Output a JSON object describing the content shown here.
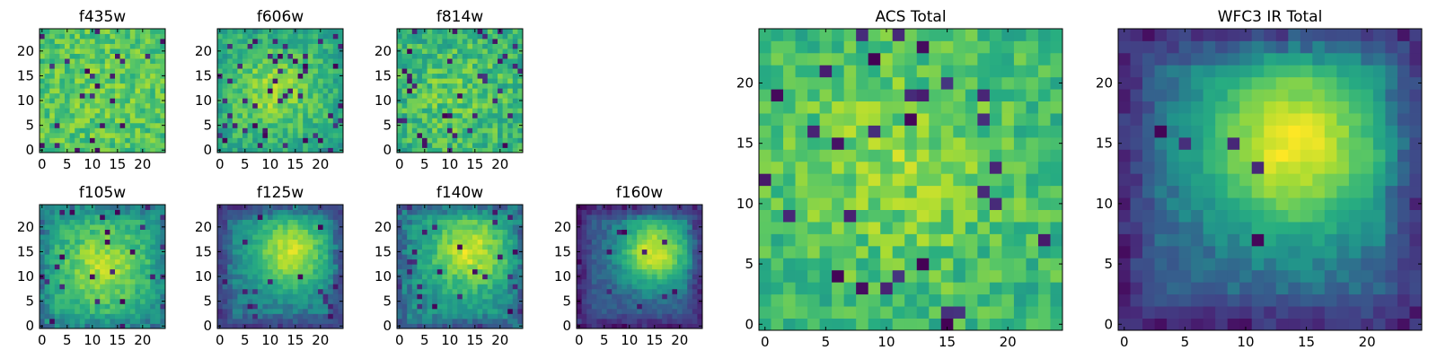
{
  "figure": {
    "background": "#ffffff",
    "colormap": "viridis"
  },
  "chart_data": [
    {
      "type": "heatmap",
      "title": "f435w",
      "grid_size": 25,
      "xlim": [
        0,
        24
      ],
      "ylim": [
        0,
        24
      ],
      "x_ticks": [
        0,
        5,
        10,
        15,
        20
      ],
      "y_ticks": [
        0,
        5,
        10,
        15,
        20
      ],
      "pattern": {
        "seed": 11,
        "base": 0.72,
        "noise": 0.26,
        "peak": 0.05,
        "peak_x": 12,
        "peak_y": 12,
        "width": 8,
        "dark_fraction": 0.04,
        "edge_dark": 0.0
      }
    },
    {
      "type": "heatmap",
      "title": "f606w",
      "grid_size": 25,
      "xlim": [
        0,
        24
      ],
      "ylim": [
        0,
        24
      ],
      "x_ticks": [
        0,
        5,
        10,
        15,
        20
      ],
      "y_ticks": [
        0,
        5,
        10,
        15,
        20
      ],
      "pattern": {
        "seed": 23,
        "base": 0.62,
        "noise": 0.24,
        "peak": 0.22,
        "peak_x": 11,
        "peak_y": 12,
        "width": 6,
        "dark_fraction": 0.06,
        "edge_dark": 0.05
      }
    },
    {
      "type": "heatmap",
      "title": "f814w",
      "grid_size": 25,
      "xlim": [
        0,
        24
      ],
      "ylim": [
        0,
        24
      ],
      "x_ticks": [
        0,
        5,
        10,
        15,
        20
      ],
      "y_ticks": [
        0,
        5,
        10,
        15,
        20
      ],
      "pattern": {
        "seed": 37,
        "base": 0.64,
        "noise": 0.3,
        "peak": 0.12,
        "peak_x": 12,
        "peak_y": 11,
        "width": 7,
        "dark_fraction": 0.07,
        "edge_dark": 0.0
      }
    },
    {
      "type": "heatmap",
      "title": "f105w",
      "grid_size": 25,
      "xlim": [
        0,
        24
      ],
      "ylim": [
        0,
        24
      ],
      "x_ticks": [
        0,
        5,
        10,
        15,
        20
      ],
      "y_ticks": [
        0,
        5,
        10,
        15,
        20
      ],
      "pattern": {
        "seed": 41,
        "base": 0.56,
        "noise": 0.18,
        "peak": 0.32,
        "peak_x": 12,
        "peak_y": 12,
        "width": 6,
        "dark_fraction": 0.04,
        "edge_dark": 0.12
      }
    },
    {
      "type": "heatmap",
      "title": "f125w",
      "grid_size": 25,
      "xlim": [
        0,
        24
      ],
      "ylim": [
        0,
        24
      ],
      "x_ticks": [
        0,
        5,
        10,
        15,
        20
      ],
      "y_ticks": [
        0,
        5,
        10,
        15,
        20
      ],
      "pattern": {
        "seed": 53,
        "base": 0.42,
        "noise": 0.14,
        "peak": 0.5,
        "peak_x": 14,
        "peak_y": 15,
        "width": 5.5,
        "dark_fraction": 0.03,
        "edge_dark": 0.18
      }
    },
    {
      "type": "heatmap",
      "title": "f140w",
      "grid_size": 25,
      "xlim": [
        0,
        24
      ],
      "ylim": [
        0,
        24
      ],
      "x_ticks": [
        0,
        5,
        10,
        15,
        20
      ],
      "y_ticks": [
        0,
        5,
        10,
        15,
        20
      ],
      "pattern": {
        "seed": 67,
        "base": 0.5,
        "noise": 0.18,
        "peak": 0.42,
        "peak_x": 14,
        "peak_y": 15,
        "width": 5.5,
        "dark_fraction": 0.03,
        "edge_dark": 0.14
      }
    },
    {
      "type": "heatmap",
      "title": "f160w",
      "grid_size": 25,
      "xlim": [
        0,
        24
      ],
      "ylim": [
        0,
        24
      ],
      "x_ticks": [
        0,
        5,
        10,
        15,
        20
      ],
      "y_ticks": [
        0,
        5,
        10,
        15,
        20
      ],
      "pattern": {
        "seed": 71,
        "base": 0.34,
        "noise": 0.12,
        "peak": 0.6,
        "peak_x": 15,
        "peak_y": 15,
        "width": 5,
        "dark_fraction": 0.02,
        "edge_dark": 0.22
      }
    },
    {
      "type": "heatmap",
      "title": "ACS Total",
      "grid_size": 25,
      "xlim": [
        0,
        24
      ],
      "ylim": [
        0,
        24
      ],
      "x_ticks": [
        0,
        5,
        10,
        15,
        20
      ],
      "y_ticks": [
        0,
        5,
        10,
        15,
        20
      ],
      "pattern": {
        "seed": 83,
        "base": 0.66,
        "noise": 0.26,
        "peak": 0.16,
        "peak_x": 11,
        "peak_y": 13,
        "width": 7,
        "dark_fraction": 0.05,
        "edge_dark": 0.0
      }
    },
    {
      "type": "heatmap",
      "title": "WFC3 IR Total",
      "grid_size": 25,
      "xlim": [
        0,
        24
      ],
      "ylim": [
        0,
        24
      ],
      "x_ticks": [
        0,
        5,
        10,
        15,
        20
      ],
      "y_ticks": [
        0,
        5,
        10,
        15,
        20
      ],
      "pattern": {
        "seed": 97,
        "base": 0.36,
        "noise": 0.1,
        "peak": 0.62,
        "peak_x": 14,
        "peak_y": 15,
        "width": 5.5,
        "dark_fraction": 0.02,
        "edge_dark": 0.22
      }
    }
  ]
}
